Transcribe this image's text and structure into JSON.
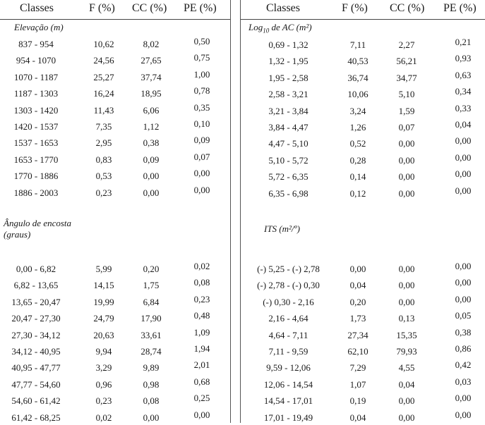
{
  "headers": {
    "classes": "Classes",
    "f": "F (%)",
    "cc": "CC (%)",
    "pe": "PE (%)"
  },
  "left": {
    "sections": [
      {
        "title": "Elevação (m)",
        "rows": [
          {
            "cls": "837 - 954",
            "f": "10,62",
            "cc": "8,02",
            "pe": "0,50"
          },
          {
            "cls": "954 - 1070",
            "f": "24,56",
            "cc": "27,65",
            "pe": "0,75"
          },
          {
            "cls": "1070 - 1187",
            "f": "25,27",
            "cc": "37,74",
            "pe": "1,00"
          },
          {
            "cls": "1187 - 1303",
            "f": "16,24",
            "cc": "18,95",
            "pe": "0,78"
          },
          {
            "cls": "1303 - 1420",
            "f": "11,43",
            "cc": "6,06",
            "pe": "0,35"
          },
          {
            "cls": "1420 - 1537",
            "f": "7,35",
            "cc": "1,12",
            "pe": "0,10"
          },
          {
            "cls": "1537 - 1653",
            "f": "2,95",
            "cc": "0,38",
            "pe": "0,09"
          },
          {
            "cls": "1653 - 1770",
            "f": "0,83",
            "cc": "0,09",
            "pe": "0,07"
          },
          {
            "cls": "1770 - 1886",
            "f": "0,53",
            "cc": "0,00",
            "pe": "0,00"
          },
          {
            "cls": "1886 - 2003",
            "f": "0,23",
            "cc": "0,00",
            "pe": "0,00"
          }
        ]
      },
      {
        "title": "Ângulo de encosta",
        "title2": "(graus)",
        "rows": [
          {
            "cls": "0,00 - 6,82",
            "f": "5,99",
            "cc": "0,20",
            "pe": "0,02"
          },
          {
            "cls": "6,82 - 13,65",
            "f": "14,15",
            "cc": "1,75",
            "pe": "0,08"
          },
          {
            "cls": "13,65 - 20,47",
            "f": "19,99",
            "cc": "6,84",
            "pe": "0,23"
          },
          {
            "cls": "20,47 - 27,30",
            "f": "24,79",
            "cc": "17,90",
            "pe": "0,48"
          },
          {
            "cls": "27,30 - 34,12",
            "f": "20,63",
            "cc": "33,61",
            "pe": "1,09"
          },
          {
            "cls": "34,12 - 40,95",
            "f": "9,94",
            "cc": "28,74",
            "pe": "1,94"
          },
          {
            "cls": "40,95 - 47,77",
            "f": "3,29",
            "cc": "9,89",
            "pe": "2,01"
          },
          {
            "cls": "47,77 - 54,60",
            "f": "0,96",
            "cc": "0,98",
            "pe": "0,68"
          },
          {
            "cls": "54,60 - 61,42",
            "f": "0,23",
            "cc": "0,08",
            "pe": "0,25"
          },
          {
            "cls": "61,42 - 68,25",
            "f": "0,02",
            "cc": "0,00",
            "pe": "0,00"
          }
        ]
      }
    ]
  },
  "right": {
    "sections": [
      {
        "title_pre": "Log",
        "title_sub": "10",
        "title_post": " de AC (m²)",
        "rows": [
          {
            "cls": "0,69 - 1,32",
            "f": "7,11",
            "cc": "2,27",
            "pe": "0,21"
          },
          {
            "cls": "1,32 - 1,95",
            "f": "40,53",
            "cc": "56,21",
            "pe": "0,93"
          },
          {
            "cls": "1,95 - 2,58",
            "f": "36,74",
            "cc": "34,77",
            "pe": "0,63"
          },
          {
            "cls": "2,58 - 3,21",
            "f": "10,06",
            "cc": "5,10",
            "pe": "0,34"
          },
          {
            "cls": "3,21 - 3,84",
            "f": "3,24",
            "cc": "1,59",
            "pe": "0,33"
          },
          {
            "cls": "3,84 - 4,47",
            "f": "1,26",
            "cc": "0,07",
            "pe": "0,04"
          },
          {
            "cls": "4,47 - 5,10",
            "f": "0,52",
            "cc": "0,00",
            "pe": "0,00"
          },
          {
            "cls": "5,10 - 5,72",
            "f": "0,28",
            "cc": "0,00",
            "pe": "0,00"
          },
          {
            "cls": "5,72 - 6,35",
            "f": "0,14",
            "cc": "0,00",
            "pe": "0,00"
          },
          {
            "cls": "6,35 - 6,98",
            "f": "0,12",
            "cc": "0,00",
            "pe": "0,00"
          }
        ]
      },
      {
        "title": "ITS (m²/º)",
        "rows": [
          {
            "cls": "(-) 5,25 - (-) 2,78",
            "f": "0,00",
            "cc": "0,00",
            "pe": "0,00"
          },
          {
            "cls": "(-) 2,78 - (-) 0,30",
            "f": "0,04",
            "cc": "0,00",
            "pe": "0,00"
          },
          {
            "cls": "(-) 0,30 - 2,16",
            "f": "0,20",
            "cc": "0,00",
            "pe": "0,00"
          },
          {
            "cls": "2,16 - 4,64",
            "f": "1,73",
            "cc": "0,13",
            "pe": "0,05"
          },
          {
            "cls": "4,64 - 7,11",
            "f": "27,34",
            "cc": "15,35",
            "pe": "0,38"
          },
          {
            "cls": "7,11 - 9,59",
            "f": "62,10",
            "cc": "79,93",
            "pe": "0,86"
          },
          {
            "cls": "9,59 - 12,06",
            "f": "7,29",
            "cc": "4,55",
            "pe": "0,42"
          },
          {
            "cls": "12,06 - 14,54",
            "f": "1,07",
            "cc": "0,04",
            "pe": "0,03"
          },
          {
            "cls": "14,54 - 17,01",
            "f": "0,19",
            "cc": "0,00",
            "pe": "0,00"
          },
          {
            "cls": "17,01 - 19,49",
            "f": "0,04",
            "cc": "0,00",
            "pe": "0,00"
          }
        ]
      }
    ]
  }
}
